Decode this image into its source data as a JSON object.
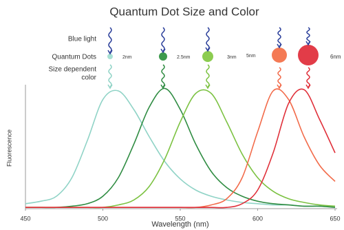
{
  "chart_data": {
    "type": "line",
    "title": "Quantum Dot Size and Color",
    "xlabel": "Wavelength (nm)",
    "ylabel": "Fluorescence",
    "annotations": [
      "Blue light",
      "Quantum Dots",
      "Size dependent",
      "color",
      "2nm",
      "2.5nm",
      "3nm",
      "5nm",
      "6nm"
    ],
    "x": [
      450,
      460,
      470,
      480,
      490,
      500,
      510,
      520,
      530,
      540,
      550,
      560,
      570,
      580,
      590,
      600,
      610,
      620,
      630,
      640,
      650
    ],
    "series": [
      {
        "color": "#8fd3c6",
        "values": [
          4,
          6,
          10,
          25,
          55,
          88,
          95,
          80,
          58,
          38,
          24,
          15,
          10,
          7,
          5,
          4,
          3,
          3,
          2,
          2,
          2
        ]
      },
      {
        "color": "#2f8c42",
        "values": [
          1,
          1,
          1,
          2,
          4,
          10,
          25,
          52,
          82,
          97,
          80,
          52,
          30,
          17,
          10,
          6,
          4,
          3,
          2,
          2,
          1
        ]
      },
      {
        "color": "#7cc242",
        "values": [
          1,
          1,
          1,
          1,
          1,
          1,
          3,
          7,
          18,
          40,
          70,
          93,
          93,
          70,
          44,
          25,
          14,
          8,
          5,
          3,
          2
        ]
      },
      {
        "color": "#f26b4a",
        "values": [
          1,
          1,
          1,
          1,
          1,
          1,
          1,
          1,
          1,
          1,
          1,
          1,
          3,
          8,
          25,
          62,
          95,
          88,
          58,
          35,
          22
        ]
      },
      {
        "color": "#e0303a",
        "values": [
          1,
          1,
          1,
          1,
          1,
          1,
          1,
          1,
          1,
          1,
          1,
          1,
          1,
          1,
          4,
          15,
          45,
          85,
          96,
          72,
          45
        ]
      }
    ],
    "xlim": [
      450,
      650
    ],
    "xticks": [
      450,
      500,
      550,
      600,
      650
    ],
    "ylim": [
      0,
      100
    ],
    "grid": false
  }
}
